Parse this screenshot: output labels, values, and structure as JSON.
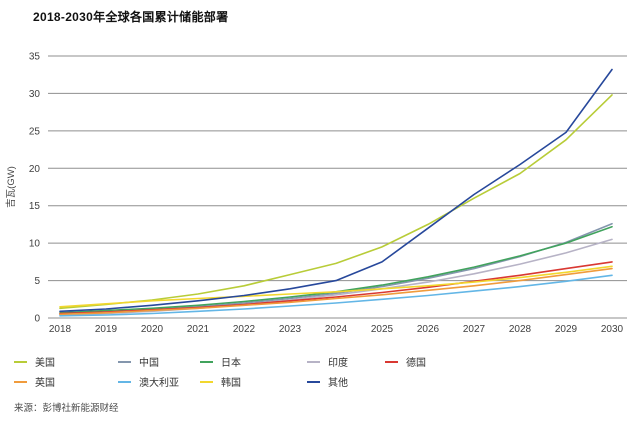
{
  "title": "2018-2030年全球各国累计储能部署",
  "source": "来源：彭博社新能源财经",
  "chart_data": {
    "type": "line",
    "title": "2018-2030年全球各国累计储能部署",
    "xlabel": "",
    "ylabel": "吉瓦(GW)",
    "grid": true,
    "legend_position": "bottom",
    "ylim": [
      0,
      35
    ],
    "yticks": [
      0,
      5,
      10,
      15,
      20,
      25,
      30,
      35
    ],
    "x": [
      2018,
      2019,
      2020,
      2021,
      2022,
      2023,
      2024,
      2025,
      2026,
      2027,
      2028,
      2029,
      2030
    ],
    "series": [
      {
        "name": "美国",
        "color": "#b8cc38",
        "values": [
          1.3,
          1.8,
          2.4,
          3.2,
          4.3,
          5.8,
          7.3,
          9.5,
          12.5,
          16.0,
          19.3,
          23.8,
          29.8
        ]
      },
      {
        "name": "中国",
        "color": "#8496ad",
        "values": [
          0.5,
          0.8,
          1.1,
          1.5,
          2.0,
          2.6,
          3.3,
          4.2,
          5.3,
          6.6,
          8.2,
          10.1,
          12.6
        ]
      },
      {
        "name": "日本",
        "color": "#41a35d",
        "values": [
          0.7,
          1.0,
          1.3,
          1.7,
          2.2,
          2.8,
          3.5,
          4.4,
          5.5,
          6.8,
          8.3,
          10.0,
          12.2
        ]
      },
      {
        "name": "印度",
        "color": "#b7b3c6",
        "values": [
          0.4,
          0.6,
          0.9,
          1.3,
          1.8,
          2.4,
          3.1,
          3.9,
          4.8,
          5.9,
          7.2,
          8.7,
          10.5
        ]
      },
      {
        "name": "德国",
        "color": "#d93832",
        "values": [
          0.6,
          0.8,
          1.1,
          1.4,
          1.8,
          2.3,
          2.8,
          3.4,
          4.1,
          4.9,
          5.7,
          6.6,
          7.5
        ]
      },
      {
        "name": "英国",
        "color": "#f09b3c",
        "values": [
          0.5,
          0.7,
          1.0,
          1.3,
          1.7,
          2.1,
          2.6,
          3.1,
          3.7,
          4.3,
          5.0,
          5.8,
          6.6
        ]
      },
      {
        "name": "澳大利亚",
        "color": "#63b6e6",
        "values": [
          0.3,
          0.4,
          0.6,
          0.9,
          1.2,
          1.6,
          2.0,
          2.5,
          3.0,
          3.6,
          4.2,
          4.9,
          5.7
        ]
      },
      {
        "name": "韩国",
        "color": "#f2d72e",
        "values": [
          1.5,
          1.9,
          2.3,
          2.6,
          2.9,
          3.2,
          3.5,
          3.9,
          4.3,
          4.8,
          5.4,
          6.1,
          6.9
        ]
      },
      {
        "name": "其他",
        "color": "#27489b",
        "values": [
          0.9,
          1.2,
          1.7,
          2.3,
          3.0,
          3.9,
          5.0,
          7.5,
          12.0,
          16.5,
          20.5,
          24.8,
          33.2
        ]
      }
    ],
    "legend_rows": [
      [
        "美国",
        "中国",
        "日本",
        "印度",
        "德国"
      ],
      [
        "英国",
        "澳大利亚",
        "韩国",
        "其他"
      ]
    ]
  },
  "style": {
    "gridline_color": "#8f8f8f",
    "background": "#ffffff"
  }
}
